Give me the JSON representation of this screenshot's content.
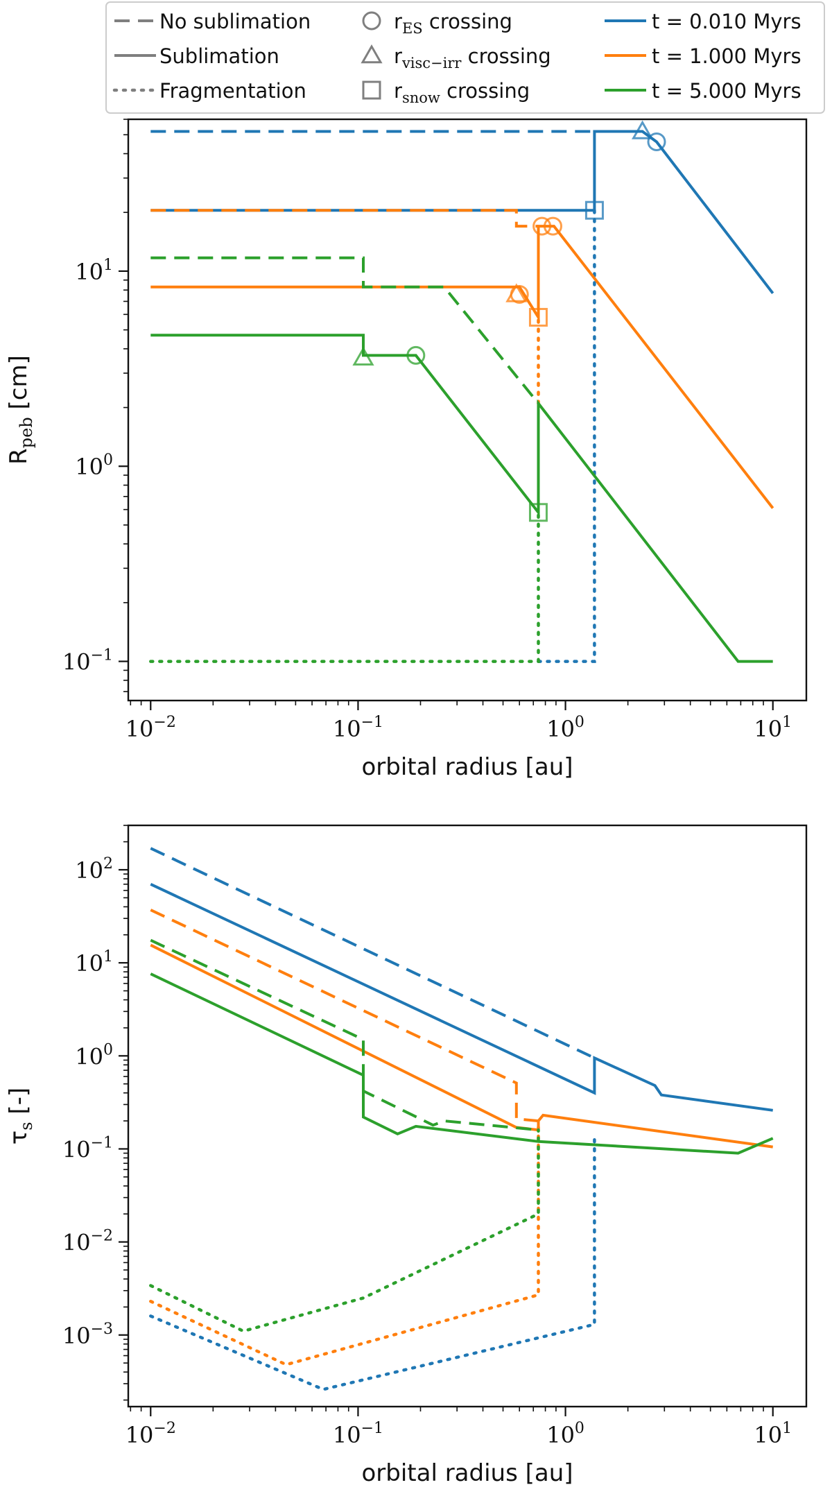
{
  "colors": {
    "blue": "#1f77b4",
    "orange": "#ff7f0e",
    "green": "#2ca02c",
    "gray": "#7f7f7f"
  },
  "legend": {
    "styles": [
      {
        "key": "dashed",
        "label": "No sublimation"
      },
      {
        "key": "solid",
        "label": "Sublimation"
      },
      {
        "key": "dotted",
        "label": "Fragmentation"
      }
    ],
    "markers": [
      {
        "key": "circle",
        "label": "r",
        "sub": "ES",
        "rest": " crossing"
      },
      {
        "key": "triangle",
        "label": "r",
        "sub": "visc−irr",
        "rest": " crossing"
      },
      {
        "key": "square",
        "label": "r",
        "sub": "snow",
        "rest": " crossing"
      }
    ],
    "times": [
      {
        "color": "blue",
        "label": "t = 0.010 Myrs"
      },
      {
        "color": "orange",
        "label": "t = 1.000 Myrs"
      },
      {
        "color": "green",
        "label": "t = 5.000 Myrs"
      }
    ]
  },
  "chart_data": [
    {
      "type": "line",
      "title": "",
      "xlabel": "orbital radius [au]",
      "ylabel": "R",
      "ylabel_sub": "peb",
      "ylabel_unit": " [cm]",
      "xscale": "log",
      "yscale": "log",
      "xlim": [
        0.0078,
        14.5
      ],
      "ylim": [
        0.063,
        60
      ],
      "xticks": [
        {
          "value": 0.01,
          "base": "10",
          "exp": "−2"
        },
        {
          "value": 0.1,
          "base": "10",
          "exp": "−1"
        },
        {
          "value": 1,
          "base": "10",
          "exp": "0"
        },
        {
          "value": 10,
          "base": "10",
          "exp": "1"
        }
      ],
      "yticks": [
        {
          "value": 0.1,
          "base": "10",
          "exp": "−1"
        },
        {
          "value": 1,
          "base": "10",
          "exp": "0"
        },
        {
          "value": 10,
          "base": "10",
          "exp": "1"
        }
      ],
      "series": [
        {
          "name": "t = 0.010 Myrs, No sublimation",
          "color": "blue",
          "style": "dashed",
          "x": [
            0.01,
            1.38
          ],
          "y": [
            52,
            52
          ]
        },
        {
          "name": "t = 0.010 Myrs, Sublimation",
          "color": "blue",
          "style": "solid",
          "x": [
            0.01,
            1.38,
            1.38,
            2.35,
            2.75,
            10
          ],
          "y": [
            20.5,
            20.5,
            52,
            52,
            46,
            7.7
          ]
        },
        {
          "name": "t = 0.010 Myrs, Fragmentation",
          "color": "blue",
          "style": "dotted",
          "x": [
            0.74,
            1.38,
            1.38
          ],
          "y": [
            0.1,
            0.1,
            20.5
          ]
        },
        {
          "name": "t = 1.000 Myrs, No sublimation",
          "color": "orange",
          "style": "dashed",
          "x": [
            0.01,
            0.58,
            0.58,
            0.74
          ],
          "y": [
            20.5,
            20.5,
            17,
            17
          ]
        },
        {
          "name": "t = 1.000 Myrs, Sublimation",
          "color": "orange",
          "style": "solid",
          "x": [
            0.01,
            0.6,
            0.74,
            0.74,
            0.88,
            10
          ],
          "y": [
            8.3,
            8.3,
            5.8,
            17,
            17,
            0.61
          ]
        },
        {
          "name": "t = 1.000 Myrs, Fragmentation",
          "color": "orange",
          "style": "dotted",
          "x": [
            0.74,
            0.74
          ],
          "y": [
            2.1,
            5.8
          ]
        },
        {
          "name": "t = 5.000 Myrs, No sublimation",
          "color": "green",
          "style": "dashed",
          "x": [
            0.01,
            0.106,
            0.106,
            0.26,
            0.74
          ],
          "y": [
            11.7,
            11.7,
            8.3,
            8.3,
            2.1
          ]
        },
        {
          "name": "t = 5.000 Myrs, Sublimation",
          "color": "green",
          "style": "solid",
          "x": [
            0.01,
            0.106,
            0.106,
            0.19,
            0.74,
            0.74,
            6.8,
            10
          ],
          "y": [
            4.7,
            4.7,
            3.7,
            3.7,
            0.58,
            2.1,
            0.1,
            0.1
          ]
        },
        {
          "name": "t = 5.000 Myrs, Fragmentation",
          "color": "green",
          "style": "dotted",
          "x": [
            0.01,
            0.74,
            0.74
          ],
          "y": [
            0.1,
            0.1,
            0.58
          ]
        }
      ],
      "markers": [
        {
          "shape": "triangle",
          "color": "blue",
          "x": 2.35,
          "y": 52
        },
        {
          "shape": "circle",
          "color": "blue",
          "x": 2.75,
          "y": 46
        },
        {
          "shape": "square",
          "color": "blue",
          "x": 1.38,
          "y": 20.5
        },
        {
          "shape": "triangle",
          "color": "orange",
          "x": 0.58,
          "y": 7.6
        },
        {
          "shape": "circle",
          "color": "orange",
          "x": 0.6,
          "y": 7.6
        },
        {
          "shape": "circle",
          "color": "orange",
          "x": 0.77,
          "y": 17
        },
        {
          "shape": "circle",
          "color": "orange",
          "x": 0.87,
          "y": 17
        },
        {
          "shape": "square",
          "color": "orange",
          "x": 0.74,
          "y": 5.8
        },
        {
          "shape": "triangle",
          "color": "green",
          "x": 0.106,
          "y": 3.6
        },
        {
          "shape": "circle",
          "color": "green",
          "x": 0.19,
          "y": 3.7
        },
        {
          "shape": "square",
          "color": "green",
          "x": 0.74,
          "y": 0.58
        }
      ]
    },
    {
      "type": "line",
      "title": "",
      "xlabel": "orbital radius [au]",
      "ylabel": "τ",
      "ylabel_sub": "s",
      "ylabel_unit": " [-]",
      "xscale": "log",
      "yscale": "log",
      "xlim": [
        0.0078,
        14.5
      ],
      "ylim": [
        0.00017,
        300
      ],
      "xticks": [
        {
          "value": 0.01,
          "base": "10",
          "exp": "−2"
        },
        {
          "value": 0.1,
          "base": "10",
          "exp": "−1"
        },
        {
          "value": 1,
          "base": "10",
          "exp": "0"
        },
        {
          "value": 10,
          "base": "10",
          "exp": "1"
        }
      ],
      "yticks": [
        {
          "value": 0.001,
          "base": "10",
          "exp": "−3"
        },
        {
          "value": 0.01,
          "base": "10",
          "exp": "−2"
        },
        {
          "value": 0.1,
          "base": "10",
          "exp": "−1"
        },
        {
          "value": 1,
          "base": "10",
          "exp": "0"
        },
        {
          "value": 10,
          "base": "10",
          "exp": "1"
        },
        {
          "value": 100,
          "base": "10",
          "exp": "2"
        }
      ],
      "series": [
        {
          "name": "t = 0.010 Myrs, No sublimation",
          "color": "blue",
          "style": "dashed",
          "x": [
            0.01,
            1.38
          ],
          "y": [
            170,
            0.95
          ]
        },
        {
          "name": "t = 0.010 Myrs, Sublimation",
          "color": "blue",
          "style": "solid",
          "x": [
            0.01,
            1.38,
            1.38,
            2.7,
            2.9,
            10
          ],
          "y": [
            70,
            0.4,
            0.95,
            0.48,
            0.38,
            0.26
          ]
        },
        {
          "name": "t = 0.010 Myrs, Fragmentation",
          "color": "blue",
          "style": "dotted",
          "x": [
            0.01,
            0.068,
            1.38,
            1.38
          ],
          "y": [
            0.0016,
            0.00026,
            0.0013,
            0.14
          ]
        },
        {
          "name": "t = 1.000 Myrs, No sublimation",
          "color": "orange",
          "style": "dashed",
          "x": [
            0.01,
            0.58,
            0.58,
            0.74
          ],
          "y": [
            37,
            0.51,
            0.21,
            0.2
          ]
        },
        {
          "name": "t = 1.000 Myrs, Sublimation",
          "color": "orange",
          "style": "solid",
          "x": [
            0.01,
            0.58,
            0.74,
            0.74,
            0.78,
            10
          ],
          "y": [
            15.5,
            0.17,
            0.16,
            0.2,
            0.23,
            0.105
          ]
        },
        {
          "name": "t = 1.000 Myrs, Fragmentation",
          "color": "orange",
          "style": "dotted",
          "x": [
            0.01,
            0.045,
            0.74,
            0.74
          ],
          "y": [
            0.0023,
            0.00048,
            0.0027,
            0.2
          ]
        },
        {
          "name": "t = 5.000 Myrs, No sublimation",
          "color": "green",
          "style": "dashed",
          "x": [
            0.01,
            0.106,
            0.106,
            0.23,
            0.26,
            0.74
          ],
          "y": [
            17.5,
            1.5,
            0.42,
            0.18,
            0.2,
            0.16
          ]
        },
        {
          "name": "t = 5.000 Myrs, Sublimation",
          "color": "green",
          "style": "solid",
          "x": [
            0.01,
            0.106,
            0.106,
            0.155,
            0.19,
            0.74,
            6.8,
            10
          ],
          "y": [
            7.6,
            0.62,
            0.22,
            0.145,
            0.175,
            0.12,
            0.09,
            0.13
          ]
        },
        {
          "name": "t = 5.000 Myrs, Fragmentation",
          "color": "green",
          "style": "dotted",
          "x": [
            0.01,
            0.028,
            0.106,
            0.74,
            0.74
          ],
          "y": [
            0.0034,
            0.0011,
            0.0025,
            0.02,
            0.16
          ]
        }
      ],
      "markers": []
    }
  ]
}
